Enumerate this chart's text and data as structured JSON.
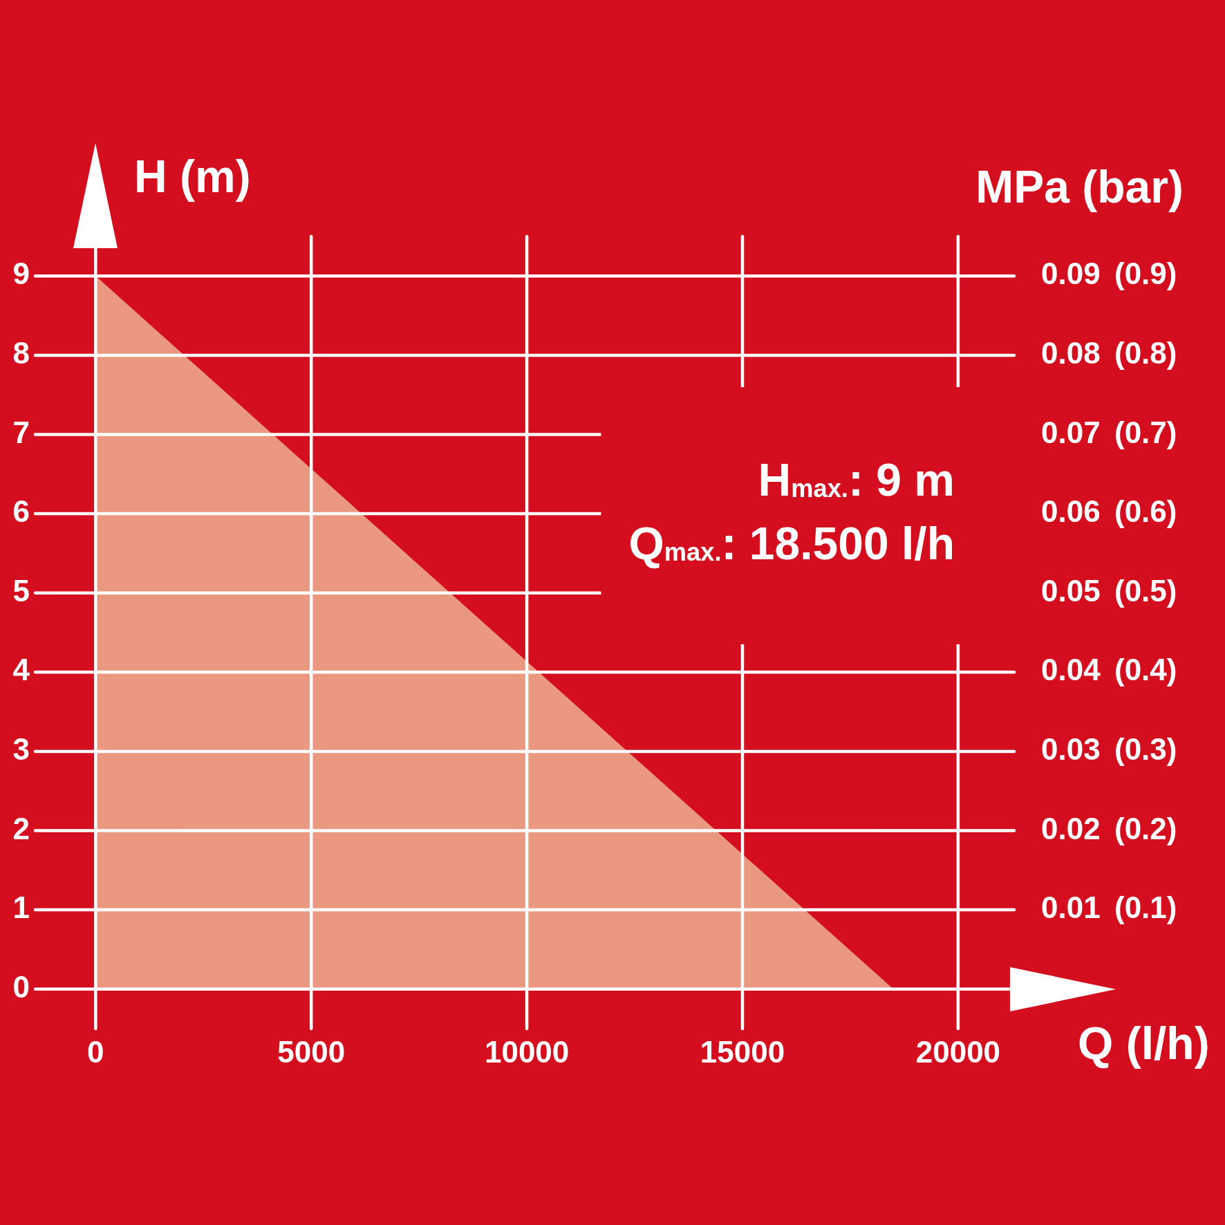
{
  "chart_data": {
    "type": "area",
    "xlabel": "Q (l/h)",
    "ylabel": "H (m)",
    "y2label": "MPa (bar)",
    "annotations": [
      "H$_{max.}$: 9 m",
      "Q$_{max.}$: 18.500 l/h"
    ],
    "x": [
      0,
      18500
    ],
    "series": [
      {
        "color": "#eb9880",
        "values": [
          9,
          0
        ]
      }
    ],
    "xlim": [
      -1400,
      21300
    ],
    "xticks": [
      0,
      5000,
      10000,
      15000,
      20000
    ],
    "ylim": [
      -0.5,
      9.5
    ],
    "yticks": [
      0,
      1,
      2,
      3,
      4,
      5,
      6,
      7,
      8,
      9
    ],
    "y2lim": [
      -0.005,
      0.095
    ],
    "y2ticks": [
      0.01,
      0.02,
      0.03,
      0.04,
      0.05,
      0.06,
      0.07,
      0.08,
      0.09
    ],
    "y3lim": [
      -0.05,
      0.95
    ],
    "y3ticks": [
      {
        "value": 0.1,
        "label": "(0.1)"
      },
      {
        "value": 0.2,
        "label": "(0.2)"
      },
      {
        "value": 0.3,
        "label": "(0.3)"
      },
      {
        "value": 0.4,
        "label": "(0.4)"
      },
      {
        "value": 0.5,
        "label": "(0.5)"
      },
      {
        "value": 0.6,
        "label": "(0.6)"
      },
      {
        "value": 0.7,
        "label": "(0.7)"
      },
      {
        "value": 0.8,
        "label": "(0.8)"
      },
      {
        "value": 0.9,
        "label": "(0.9)"
      }
    ],
    "grid": true
  }
}
